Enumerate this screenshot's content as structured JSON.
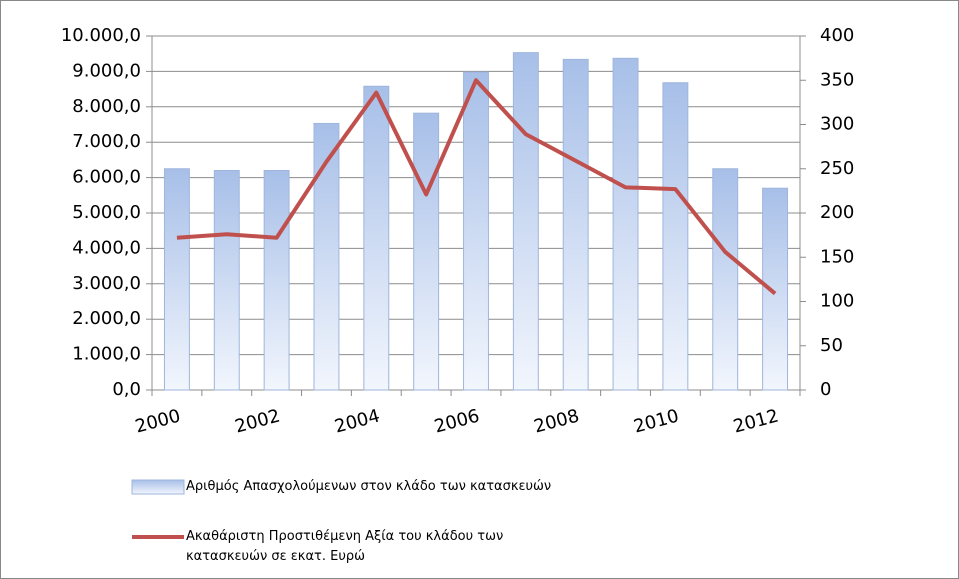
{
  "chart_data": {
    "type": "bar_line",
    "categories": [
      "2000",
      null,
      "2002",
      null,
      "2004",
      null,
      "2006",
      null,
      "2008",
      null,
      "2010",
      null,
      "2012"
    ],
    "series": [
      {
        "name": "Αριθμός Απασχολούμενων στον κλάδο των κατασκευών",
        "type": "bar",
        "color": "#a7bfe8",
        "values": [
          6250,
          6200,
          6200,
          7530,
          8580,
          7820,
          8980,
          9530,
          9340,
          9370,
          8680,
          6250,
          5700
        ]
      },
      {
        "name": "Ακαθάριστη Προστιθέμενη Αξία του κλάδου των κατασκευών σε εκατ. Ευρώ",
        "type": "line",
        "axis": "y2",
        "color": "#c0504d",
        "values": [
          172,
          176,
          172,
          258,
          336,
          221,
          350,
          289,
          259,
          229,
          227,
          156,
          109
        ]
      }
    ],
    "ylim": [
      0,
      10000
    ],
    "yticks": [
      {
        "value": 0,
        "label": "0,0"
      },
      {
        "value": 1000,
        "label": "1.000,0"
      },
      {
        "value": 2000,
        "label": "2.000,0"
      },
      {
        "value": 3000,
        "label": "3.000,0"
      },
      {
        "value": 4000,
        "label": "4.000,0"
      },
      {
        "value": 5000,
        "label": "5.000,0"
      },
      {
        "value": 6000,
        "label": "6.000,0"
      },
      {
        "value": 7000,
        "label": "7.000,0"
      },
      {
        "value": 8000,
        "label": "8.000,0"
      },
      {
        "value": 9000,
        "label": "9.000,0"
      },
      {
        "value": 10000,
        "label": "10.000,0"
      }
    ],
    "y2lim": [
      0,
      400
    ],
    "y2ticks": [
      0,
      50,
      100,
      150,
      200,
      250,
      300,
      350,
      400
    ],
    "grid": true
  }
}
